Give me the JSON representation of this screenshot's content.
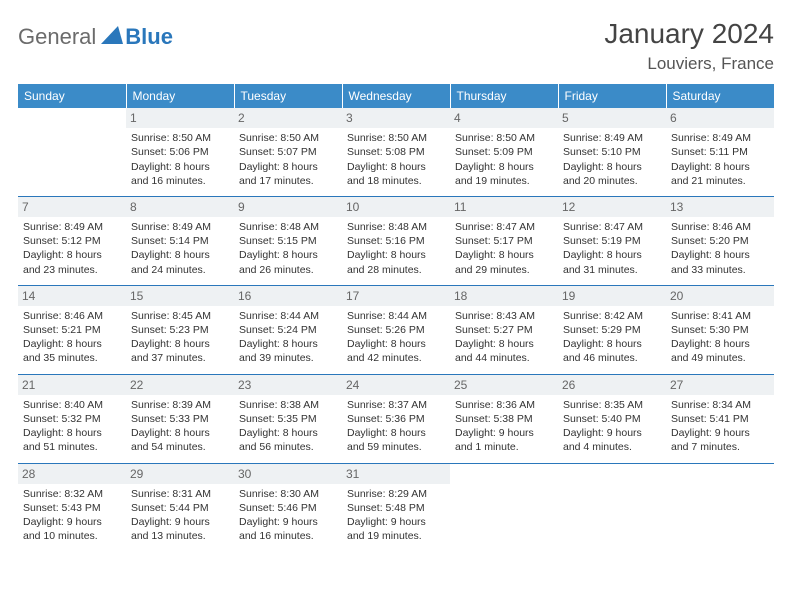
{
  "brand": {
    "part1": "General",
    "part2": "Blue"
  },
  "title": "January 2024",
  "location": "Louviers, France",
  "colors": {
    "header_bg": "#3b8bc8",
    "header_text": "#ffffff",
    "row_border": "#2a77bb",
    "daynum_bg": "#eef1f3",
    "daynum_text": "#666666",
    "body_text": "#333333",
    "logo_gray": "#6b6b6b",
    "logo_blue": "#2a77bb"
  },
  "weekdays": [
    "Sunday",
    "Monday",
    "Tuesday",
    "Wednesday",
    "Thursday",
    "Friday",
    "Saturday"
  ],
  "weeks": [
    [
      {
        "day": "",
        "sunrise": "",
        "sunset": "",
        "daylight": ""
      },
      {
        "day": "1",
        "sunrise": "Sunrise: 8:50 AM",
        "sunset": "Sunset: 5:06 PM",
        "daylight": "Daylight: 8 hours and 16 minutes."
      },
      {
        "day": "2",
        "sunrise": "Sunrise: 8:50 AM",
        "sunset": "Sunset: 5:07 PM",
        "daylight": "Daylight: 8 hours and 17 minutes."
      },
      {
        "day": "3",
        "sunrise": "Sunrise: 8:50 AM",
        "sunset": "Sunset: 5:08 PM",
        "daylight": "Daylight: 8 hours and 18 minutes."
      },
      {
        "day": "4",
        "sunrise": "Sunrise: 8:50 AM",
        "sunset": "Sunset: 5:09 PM",
        "daylight": "Daylight: 8 hours and 19 minutes."
      },
      {
        "day": "5",
        "sunrise": "Sunrise: 8:49 AM",
        "sunset": "Sunset: 5:10 PM",
        "daylight": "Daylight: 8 hours and 20 minutes."
      },
      {
        "day": "6",
        "sunrise": "Sunrise: 8:49 AM",
        "sunset": "Sunset: 5:11 PM",
        "daylight": "Daylight: 8 hours and 21 minutes."
      }
    ],
    [
      {
        "day": "7",
        "sunrise": "Sunrise: 8:49 AM",
        "sunset": "Sunset: 5:12 PM",
        "daylight": "Daylight: 8 hours and 23 minutes."
      },
      {
        "day": "8",
        "sunrise": "Sunrise: 8:49 AM",
        "sunset": "Sunset: 5:14 PM",
        "daylight": "Daylight: 8 hours and 24 minutes."
      },
      {
        "day": "9",
        "sunrise": "Sunrise: 8:48 AM",
        "sunset": "Sunset: 5:15 PM",
        "daylight": "Daylight: 8 hours and 26 minutes."
      },
      {
        "day": "10",
        "sunrise": "Sunrise: 8:48 AM",
        "sunset": "Sunset: 5:16 PM",
        "daylight": "Daylight: 8 hours and 28 minutes."
      },
      {
        "day": "11",
        "sunrise": "Sunrise: 8:47 AM",
        "sunset": "Sunset: 5:17 PM",
        "daylight": "Daylight: 8 hours and 29 minutes."
      },
      {
        "day": "12",
        "sunrise": "Sunrise: 8:47 AM",
        "sunset": "Sunset: 5:19 PM",
        "daylight": "Daylight: 8 hours and 31 minutes."
      },
      {
        "day": "13",
        "sunrise": "Sunrise: 8:46 AM",
        "sunset": "Sunset: 5:20 PM",
        "daylight": "Daylight: 8 hours and 33 minutes."
      }
    ],
    [
      {
        "day": "14",
        "sunrise": "Sunrise: 8:46 AM",
        "sunset": "Sunset: 5:21 PM",
        "daylight": "Daylight: 8 hours and 35 minutes."
      },
      {
        "day": "15",
        "sunrise": "Sunrise: 8:45 AM",
        "sunset": "Sunset: 5:23 PM",
        "daylight": "Daylight: 8 hours and 37 minutes."
      },
      {
        "day": "16",
        "sunrise": "Sunrise: 8:44 AM",
        "sunset": "Sunset: 5:24 PM",
        "daylight": "Daylight: 8 hours and 39 minutes."
      },
      {
        "day": "17",
        "sunrise": "Sunrise: 8:44 AM",
        "sunset": "Sunset: 5:26 PM",
        "daylight": "Daylight: 8 hours and 42 minutes."
      },
      {
        "day": "18",
        "sunrise": "Sunrise: 8:43 AM",
        "sunset": "Sunset: 5:27 PM",
        "daylight": "Daylight: 8 hours and 44 minutes."
      },
      {
        "day": "19",
        "sunrise": "Sunrise: 8:42 AM",
        "sunset": "Sunset: 5:29 PM",
        "daylight": "Daylight: 8 hours and 46 minutes."
      },
      {
        "day": "20",
        "sunrise": "Sunrise: 8:41 AM",
        "sunset": "Sunset: 5:30 PM",
        "daylight": "Daylight: 8 hours and 49 minutes."
      }
    ],
    [
      {
        "day": "21",
        "sunrise": "Sunrise: 8:40 AM",
        "sunset": "Sunset: 5:32 PM",
        "daylight": "Daylight: 8 hours and 51 minutes."
      },
      {
        "day": "22",
        "sunrise": "Sunrise: 8:39 AM",
        "sunset": "Sunset: 5:33 PM",
        "daylight": "Daylight: 8 hours and 54 minutes."
      },
      {
        "day": "23",
        "sunrise": "Sunrise: 8:38 AM",
        "sunset": "Sunset: 5:35 PM",
        "daylight": "Daylight: 8 hours and 56 minutes."
      },
      {
        "day": "24",
        "sunrise": "Sunrise: 8:37 AM",
        "sunset": "Sunset: 5:36 PM",
        "daylight": "Daylight: 8 hours and 59 minutes."
      },
      {
        "day": "25",
        "sunrise": "Sunrise: 8:36 AM",
        "sunset": "Sunset: 5:38 PM",
        "daylight": "Daylight: 9 hours and 1 minute."
      },
      {
        "day": "26",
        "sunrise": "Sunrise: 8:35 AM",
        "sunset": "Sunset: 5:40 PM",
        "daylight": "Daylight: 9 hours and 4 minutes."
      },
      {
        "day": "27",
        "sunrise": "Sunrise: 8:34 AM",
        "sunset": "Sunset: 5:41 PM",
        "daylight": "Daylight: 9 hours and 7 minutes."
      }
    ],
    [
      {
        "day": "28",
        "sunrise": "Sunrise: 8:32 AM",
        "sunset": "Sunset: 5:43 PM",
        "daylight": "Daylight: 9 hours and 10 minutes."
      },
      {
        "day": "29",
        "sunrise": "Sunrise: 8:31 AM",
        "sunset": "Sunset: 5:44 PM",
        "daylight": "Daylight: 9 hours and 13 minutes."
      },
      {
        "day": "30",
        "sunrise": "Sunrise: 8:30 AM",
        "sunset": "Sunset: 5:46 PM",
        "daylight": "Daylight: 9 hours and 16 minutes."
      },
      {
        "day": "31",
        "sunrise": "Sunrise: 8:29 AM",
        "sunset": "Sunset: 5:48 PM",
        "daylight": "Daylight: 9 hours and 19 minutes."
      },
      {
        "day": "",
        "sunrise": "",
        "sunset": "",
        "daylight": ""
      },
      {
        "day": "",
        "sunrise": "",
        "sunset": "",
        "daylight": ""
      },
      {
        "day": "",
        "sunrise": "",
        "sunset": "",
        "daylight": ""
      }
    ]
  ]
}
